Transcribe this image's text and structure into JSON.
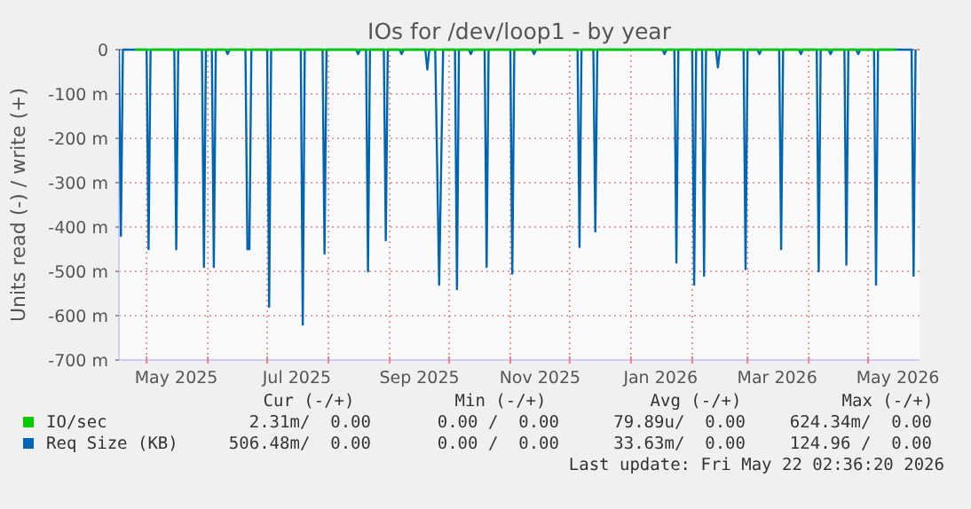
{
  "chart_data": {
    "type": "line",
    "title": "IOs for /dev/loop1 - by year",
    "ylabel": "Units read (-) / write (+)",
    "xlim": [
      "2025-04-17",
      "2026-05-27"
    ],
    "xticks": [
      {
        "value": "2025-05-01",
        "label": null
      },
      {
        "value": "2025-05-16",
        "label": "May 2025"
      },
      {
        "value": "2025-06-01",
        "label": null
      },
      {
        "value": "2025-07-01",
        "label": null
      },
      {
        "value": "2025-07-16",
        "label": "Jul 2025"
      },
      {
        "value": "2025-08-01",
        "label": null
      },
      {
        "value": "2025-09-01",
        "label": null
      },
      {
        "value": "2025-09-16",
        "label": "Sep 2025"
      },
      {
        "value": "2025-10-01",
        "label": null
      },
      {
        "value": "2025-11-01",
        "label": null
      },
      {
        "value": "2025-11-16",
        "label": "Nov 2025"
      },
      {
        "value": "2025-12-01",
        "label": null
      },
      {
        "value": "2026-01-01",
        "label": null
      },
      {
        "value": "2026-01-16",
        "label": "Jan 2026"
      },
      {
        "value": "2026-02-01",
        "label": null
      },
      {
        "value": "2026-03-01",
        "label": null
      },
      {
        "value": "2026-03-16",
        "label": "Mar 2026"
      },
      {
        "value": "2026-04-01",
        "label": null
      },
      {
        "value": "2026-05-01",
        "label": null
      },
      {
        "value": "2026-05-16",
        "label": "May 2026"
      }
    ],
    "ylim": [
      -700,
      0
    ],
    "yticks": [
      {
        "value": -700,
        "label": "-700 m"
      },
      {
        "value": -600,
        "label": "-600 m"
      },
      {
        "value": -500,
        "label": "-500 m"
      },
      {
        "value": -400,
        "label": "-400 m"
      },
      {
        "value": -300,
        "label": "-300 m"
      },
      {
        "value": -200,
        "label": "-200 m"
      },
      {
        "value": -100,
        "label": "-100 m"
      },
      0
    ],
    "grid": true,
    "legend": "bottom",
    "series": [
      {
        "name": "Req Size (KB)",
        "color": "#0066b3",
        "x": [
          "2025-04-17",
          "2025-04-18",
          "2025-04-19",
          "2025-05-01",
          "2025-05-02",
          "2025-05-03",
          "2025-05-15",
          "2025-05-16",
          "2025-05-17",
          "2025-05-29",
          "2025-05-30",
          "2025-05-31",
          "2025-06-03",
          "2025-06-04",
          "2025-06-05",
          "2025-06-10",
          "2025-06-11",
          "2025-06-12",
          "2025-06-20",
          "2025-06-21",
          "2025-06-22",
          "2025-06-23",
          "2025-07-01",
          "2025-07-02",
          "2025-07-03",
          "2025-07-18",
          "2025-07-19",
          "2025-07-20",
          "2025-07-29",
          "2025-07-30",
          "2025-07-31",
          "2025-08-15",
          "2025-08-16",
          "2025-08-17",
          "2025-08-20",
          "2025-08-21",
          "2025-08-22",
          "2025-08-29",
          "2025-08-30",
          "2025-08-31",
          "2025-09-06",
          "2025-09-07",
          "2025-09-08",
          "2025-09-19",
          "2025-09-20",
          "2025-09-21",
          "2025-09-24",
          "2025-09-26",
          "2025-09-28",
          "2025-10-04",
          "2025-10-05",
          "2025-10-06",
          "2025-10-11",
          "2025-10-12",
          "2025-10-13",
          "2025-10-19",
          "2025-10-20",
          "2025-10-21",
          "2025-11-01",
          "2025-11-02",
          "2025-11-03",
          "2025-11-12",
          "2025-11-13",
          "2025-11-14",
          "2025-12-05",
          "2025-12-06",
          "2025-12-07",
          "2025-12-13",
          "2025-12-14",
          "2025-12-15",
          "2026-01-17",
          "2026-01-18",
          "2026-01-19",
          "2026-01-23",
          "2026-01-24",
          "2026-01-25",
          "2026-02-01",
          "2026-02-02",
          "2026-02-03",
          "2026-02-06",
          "2026-02-07",
          "2026-02-08",
          "2026-02-13",
          "2026-02-14",
          "2026-02-15",
          "2026-02-27",
          "2026-02-28",
          "2026-03-01",
          "2026-03-06",
          "2026-03-07",
          "2026-03-08",
          "2026-03-17",
          "2026-03-18",
          "2026-03-19",
          "2026-03-27",
          "2026-03-28",
          "2026-03-29",
          "2026-04-05",
          "2026-04-06",
          "2026-04-07",
          "2026-04-11",
          "2026-04-12",
          "2026-04-13",
          "2026-04-19",
          "2026-04-20",
          "2026-04-21",
          "2026-04-25",
          "2026-04-26",
          "2026-04-27",
          "2026-05-04",
          "2026-05-05",
          "2026-05-06",
          "2026-05-23",
          "2026-05-24",
          "2026-05-25"
        ],
        "values": [
          0,
          -420,
          0,
          0,
          -450,
          0,
          0,
          -450,
          0,
          0,
          -490,
          0,
          0,
          -490,
          0,
          0,
          -10,
          0,
          0,
          -450,
          -450,
          0,
          0,
          -580,
          0,
          0,
          -620,
          0,
          0,
          -460,
          0,
          0,
          -10,
          0,
          0,
          -500,
          0,
          0,
          -430,
          0,
          0,
          -10,
          0,
          0,
          -45,
          0,
          0,
          -530,
          0,
          0,
          -540,
          0,
          0,
          -10,
          0,
          0,
          -490,
          0,
          0,
          -505,
          0,
          0,
          -10,
          0,
          0,
          -445,
          0,
          0,
          -410,
          0,
          0,
          -10,
          0,
          0,
          -480,
          0,
          0,
          -530,
          0,
          0,
          -510,
          0,
          0,
          -40,
          0,
          0,
          -495,
          0,
          0,
          -10,
          0,
          0,
          -450,
          0,
          0,
          -10,
          0,
          0,
          -500,
          0,
          0,
          -10,
          0,
          0,
          -485,
          0,
          0,
          -10,
          0,
          0,
          -530,
          0,
          0,
          -510,
          0
        ]
      },
      {
        "name": "IO/sec",
        "color": "#00cc00",
        "x": [
          "2025-04-25",
          "2026-05-15"
        ],
        "values": [
          0,
          0
        ]
      }
    ],
    "annotations": [
      "Cur (-/+)",
      "Min (-/+)",
      "Avg (-/+)",
      "Max (-/+)",
      "2.31m/  0.00",
      "0.00 /  0.00",
      "79.89u/  0.00",
      "624.34m/  0.00",
      "506.48m/  0.00",
      "0.00 /  0.00",
      "33.63m/  0.00",
      "124.96 /  0.00",
      "Last update: Fri May 22 02:36:20 2026"
    ]
  }
}
